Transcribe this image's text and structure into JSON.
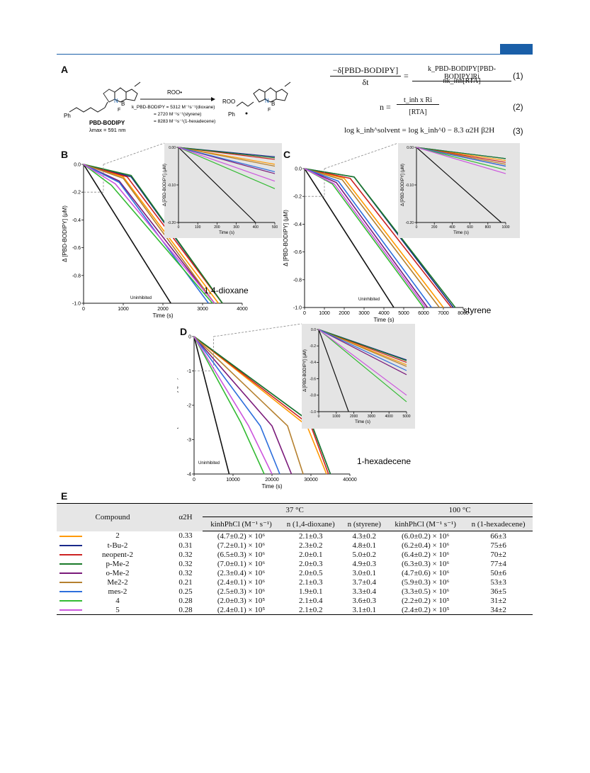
{
  "header": {
    "accent": "#1a5fa8"
  },
  "panels": {
    "A": "A",
    "B": "B",
    "C": "C",
    "D": "D",
    "E": "E"
  },
  "scheme": {
    "reagent": "ROO•",
    "rates": [
      "k_PBD-BODIPY = 5312 M⁻¹s⁻¹(dioxane)",
      "= 2720 M⁻¹s⁻¹(styrene)",
      "= 8283 M⁻¹s⁻¹(1-hexadecene)"
    ],
    "compound_name": "PBD-BODIPY",
    "lambda_max": "λmax = 591 nm",
    "ph_label": "Ph",
    "roo_label": "ROO",
    "atoms": {
      "N": "N",
      "B": "B",
      "F": "F"
    }
  },
  "equations": {
    "eq1_lhs_num": "−δ[PBD-BODIPY]",
    "eq1_lhs_den": "δt",
    "eq1_rhs_num": "k_PBD-BODIPY[PBD-BODIPY]Ri",
    "eq1_rhs_den": "nk_inh[RTA]",
    "eq1_num": "(1)",
    "eq2_lhs": "n =",
    "eq2_num_text": "t_inh x Ri",
    "eq2_den_text": "[RTA]",
    "eq2_num": "(2)",
    "eq3_text": "log k_inh^solvent = log k_inh^0 − 8.3 α2H β2H",
    "eq3_num": "(3)"
  },
  "chart_data": [
    {
      "id": "B",
      "type": "line",
      "solvent_label": "1,4-dioxane",
      "xlabel": "Time (s)",
      "ylabel": "Δ [PBD-BODIPY] (μM)",
      "xlim": [
        0,
        4000
      ],
      "ylim": [
        -1.0,
        0.0
      ],
      "xticks": [
        "0",
        "1000",
        "2000",
        "3000",
        "4000"
      ],
      "yticks": [
        "0.0",
        "-0.2",
        "-0.4",
        "-0.6",
        "-0.8",
        "-1.0"
      ],
      "uninhibited_label": "Uninhibited",
      "series": [
        {
          "color": "#111111",
          "x": [
            0,
            2200
          ],
          "y": [
            0,
            -1.0
          ]
        },
        {
          "color": "#ff9900",
          "x": [
            0,
            1000,
            3400
          ],
          "y": [
            0,
            -0.09,
            -1.0
          ]
        },
        {
          "color": "#1a2a8a",
          "x": [
            0,
            1200,
            3500
          ],
          "y": [
            0,
            -0.09,
            -1.0
          ]
        },
        {
          "color": "#cc2222",
          "x": [
            0,
            1100,
            3500
          ],
          "y": [
            0,
            -0.09,
            -1.0
          ]
        },
        {
          "color": "#1a7a2a",
          "x": [
            0,
            1200,
            3500
          ],
          "y": [
            0,
            -0.08,
            -1.0
          ]
        },
        {
          "color": "#7a1a7a",
          "x": [
            0,
            900,
            3300
          ],
          "y": [
            0,
            -0.12,
            -1.0
          ]
        },
        {
          "color": "#b5802f",
          "x": [
            0,
            1000,
            3300
          ],
          "y": [
            0,
            -0.1,
            -1.0
          ]
        },
        {
          "color": "#2e6fdc",
          "x": [
            0,
            900,
            3150
          ],
          "y": [
            0,
            -0.13,
            -1.0
          ]
        },
        {
          "color": "#33bb33",
          "x": [
            0,
            700,
            3250
          ],
          "y": [
            0,
            -0.15,
            -1.0
          ]
        },
        {
          "color": "#cc55dd",
          "x": [
            0,
            800,
            3300
          ],
          "y": [
            0,
            -0.14,
            -1.0
          ]
        }
      ],
      "inset": {
        "xlim": [
          0,
          500
        ],
        "ylim": [
          -0.2,
          0.0
        ],
        "xlabel": "Time (s)",
        "ylabel": "Δ [PBD-BODIPY] (μM)",
        "xticks": [
          "0",
          "100",
          "200",
          "300",
          "400",
          "500"
        ],
        "yticks": [
          "0.00",
          "-0.10",
          "-0.20"
        ],
        "series": [
          {
            "color": "#111111",
            "x": [
              0,
              400
            ],
            "y": [
              0,
              -0.2
            ]
          },
          {
            "color": "#ff9900",
            "x": [
              0,
              500
            ],
            "y": [
              0,
              -0.045
            ]
          },
          {
            "color": "#1a2a8a",
            "x": [
              0,
              500
            ],
            "y": [
              0,
              -0.025
            ]
          },
          {
            "color": "#cc2222",
            "x": [
              0,
              500
            ],
            "y": [
              0,
              -0.032
            ]
          },
          {
            "color": "#1a7a2a",
            "x": [
              0,
              500
            ],
            "y": [
              0,
              -0.028
            ]
          },
          {
            "color": "#7a1a7a",
            "x": [
              0,
              500
            ],
            "y": [
              0,
              -0.07
            ]
          },
          {
            "color": "#b5802f",
            "x": [
              0,
              500
            ],
            "y": [
              0,
              -0.05
            ]
          },
          {
            "color": "#2e6fdc",
            "x": [
              0,
              500
            ],
            "y": [
              0,
              -0.065
            ]
          },
          {
            "color": "#33bb33",
            "x": [
              0,
              500
            ],
            "y": [
              0,
              -0.11
            ]
          },
          {
            "color": "#cc55dd",
            "x": [
              0,
              500
            ],
            "y": [
              0,
              -0.09
            ]
          }
        ]
      }
    },
    {
      "id": "C",
      "type": "line",
      "solvent_label": "styrene",
      "xlabel": "Time (s)",
      "ylabel": "Δ [PBD-BODIPY] (μM)",
      "xlim": [
        0,
        8000
      ],
      "ylim": [
        -1.0,
        0.0
      ],
      "xticks": [
        "0",
        "1000",
        "2000",
        "3000",
        "4000",
        "5000",
        "6000",
        "7000",
        "8000"
      ],
      "yticks": [
        "0.0",
        "-0.2",
        "-0.4",
        "-0.6",
        "-0.8",
        "-1.0"
      ],
      "uninhibited_label": "Uninhibited",
      "series": [
        {
          "color": "#111111",
          "x": [
            0,
            4500
          ],
          "y": [
            0,
            -1.0
          ]
        },
        {
          "color": "#ff9900",
          "x": [
            0,
            2000,
            7000
          ],
          "y": [
            0,
            -0.07,
            -1.0
          ]
        },
        {
          "color": "#1a2a8a",
          "x": [
            0,
            2500,
            7500
          ],
          "y": [
            0,
            -0.06,
            -1.0
          ]
        },
        {
          "color": "#cc2222",
          "x": [
            0,
            2300,
            7400
          ],
          "y": [
            0,
            -0.07,
            -1.0
          ]
        },
        {
          "color": "#1a7a2a",
          "x": [
            0,
            2500,
            7600
          ],
          "y": [
            0,
            -0.06,
            -1.0
          ]
        },
        {
          "color": "#7a1a7a",
          "x": [
            0,
            1600,
            6200
          ],
          "y": [
            0,
            -0.1,
            -1.0
          ]
        },
        {
          "color": "#b5802f",
          "x": [
            0,
            1900,
            6800
          ],
          "y": [
            0,
            -0.08,
            -1.0
          ]
        },
        {
          "color": "#2e6fdc",
          "x": [
            0,
            1700,
            6400
          ],
          "y": [
            0,
            -0.09,
            -1.0
          ]
        },
        {
          "color": "#33bb33",
          "x": [
            0,
            1400,
            6000
          ],
          "y": [
            0,
            -0.11,
            -1.0
          ]
        },
        {
          "color": "#cc55dd",
          "x": [
            0,
            1500,
            6100
          ],
          "y": [
            0,
            -0.11,
            -1.0
          ]
        }
      ],
      "inset": {
        "xlim": [
          0,
          1000
        ],
        "ylim": [
          -0.2,
          0.0
        ],
        "xlabel": "Time (s)",
        "ylabel": "Δ [PBD-BODIPY] (μM)",
        "xticks": [
          "0",
          "200",
          "400",
          "600",
          "800",
          "1000"
        ],
        "yticks": [
          "0.00",
          "-0.10",
          "-0.20"
        ],
        "series": [
          {
            "color": "#111111",
            "x": [
              0,
              950
            ],
            "y": [
              0,
              -0.2
            ]
          },
          {
            "color": "#ff9900",
            "x": [
              0,
              1000
            ],
            "y": [
              0,
              -0.035
            ]
          },
          {
            "color": "#1a2a8a",
            "x": [
              0,
              1000
            ],
            "y": [
              0,
              -0.03
            ]
          },
          {
            "color": "#cc2222",
            "x": [
              0,
              1000
            ],
            "y": [
              0,
              -0.04
            ]
          },
          {
            "color": "#1a7a2a",
            "x": [
              0,
              1000
            ],
            "y": [
              0,
              -0.03
            ]
          },
          {
            "color": "#7a1a7a",
            "x": [
              0,
              1000
            ],
            "y": [
              0,
              -0.05
            ]
          },
          {
            "color": "#b5802f",
            "x": [
              0,
              1000
            ],
            "y": [
              0,
              -0.045
            ]
          },
          {
            "color": "#2e6fdc",
            "x": [
              0,
              1000
            ],
            "y": [
              0,
              -0.05
            ]
          },
          {
            "color": "#33bb33",
            "x": [
              0,
              1000
            ],
            "y": [
              0,
              -0.06
            ]
          },
          {
            "color": "#cc55dd",
            "x": [
              0,
              1000
            ],
            "y": [
              0,
              -0.07
            ]
          }
        ]
      }
    },
    {
      "id": "D",
      "type": "line",
      "solvent_label": "1-hexadecene",
      "xlabel": "Time (s)",
      "ylabel": "Δ[PBD-BODIPY] (μM)",
      "xlim": [
        0,
        40000
      ],
      "ylim": [
        -4,
        0
      ],
      "xticks": [
        "0",
        "10000",
        "20000",
        "30000",
        "40000"
      ],
      "yticks": [
        "0",
        "-1",
        "-2",
        "-3",
        "-4"
      ],
      "uninhibited_label": "Uninhibited",
      "series": [
        {
          "color": "#111111",
          "x": [
            0,
            9000
          ],
          "y": [
            0,
            -4
          ]
        },
        {
          "color": "#ff9900",
          "x": [
            0,
            29000,
            34000
          ],
          "y": [
            0,
            -2.6,
            -4
          ]
        },
        {
          "color": "#1a2a8a",
          "x": [
            0,
            30000,
            35000
          ],
          "y": [
            0,
            -2.5,
            -4
          ]
        },
        {
          "color": "#cc2222",
          "x": [
            0,
            30000,
            34500
          ],
          "y": [
            0,
            -2.6,
            -4
          ]
        },
        {
          "color": "#1a7a2a",
          "x": [
            0,
            30000,
            35000
          ],
          "y": [
            0,
            -2.5,
            -4
          ]
        },
        {
          "color": "#7a1a7a",
          "x": [
            0,
            20000,
            25000
          ],
          "y": [
            0,
            -2.6,
            -4
          ]
        },
        {
          "color": "#b5802f",
          "x": [
            0,
            24000,
            28000
          ],
          "y": [
            0,
            -2.6,
            -4
          ]
        },
        {
          "color": "#2e6fdc",
          "x": [
            0,
            17000,
            22000
          ],
          "y": [
            0,
            -2.6,
            -4
          ]
        },
        {
          "color": "#33bb33",
          "x": [
            0,
            12000,
            18000
          ],
          "y": [
            0,
            -2.5,
            -4
          ]
        },
        {
          "color": "#cc55dd",
          "x": [
            0,
            14000,
            20000
          ],
          "y": [
            0,
            -2.6,
            -4
          ]
        }
      ],
      "inset": {
        "xlim": [
          0,
          5000
        ],
        "ylim": [
          -1.0,
          0.0
        ],
        "xlabel": "Time (s)",
        "ylabel": "Δ [PBD-BODIPY] (μM)",
        "xticks": [
          "0",
          "1000",
          "2000",
          "3000",
          "4000",
          "5000"
        ],
        "yticks": [
          "0.0",
          "-0.2",
          "-0.4",
          "-0.6",
          "-0.8",
          "-1.0"
        ],
        "series": [
          {
            "color": "#111111",
            "x": [
              0,
              1700
            ],
            "y": [
              0,
              -1.0
            ]
          },
          {
            "color": "#ff9900",
            "x": [
              0,
              5000
            ],
            "y": [
              0,
              -0.43
            ]
          },
          {
            "color": "#1a2a8a",
            "x": [
              0,
              5000
            ],
            "y": [
              0,
              -0.37
            ]
          },
          {
            "color": "#cc2222",
            "x": [
              0,
              5000
            ],
            "y": [
              0,
              -0.4
            ]
          },
          {
            "color": "#1a7a2a",
            "x": [
              0,
              5000
            ],
            "y": [
              0,
              -0.38
            ]
          },
          {
            "color": "#7a1a7a",
            "x": [
              0,
              5000
            ],
            "y": [
              0,
              -0.55
            ]
          },
          {
            "color": "#b5802f",
            "x": [
              0,
              5000
            ],
            "y": [
              0,
              -0.45
            ]
          },
          {
            "color": "#2e6fdc",
            "x": [
              0,
              5000
            ],
            "y": [
              0,
              -0.5
            ]
          },
          {
            "color": "#33bb33",
            "x": [
              0,
              5000
            ],
            "y": [
              0,
              -0.88
            ]
          },
          {
            "color": "#cc55dd",
            "x": [
              0,
              5000
            ],
            "y": [
              0,
              -0.8
            ]
          }
        ]
      }
    }
  ],
  "table": {
    "headers": {
      "compound": "Compound",
      "alpha": "α2H",
      "temp37": "37 °C",
      "temp100": "100 °C",
      "k37": "kinhPhCl (M⁻¹ s⁻¹)",
      "n_dioxane": "n (1,4-dioxane)",
      "n_styrene": "n (styrene)",
      "k100": "kinhPhCl (M⁻¹ s⁻¹)",
      "n_hexadecene": "n (1-hexadecene)"
    },
    "rows": [
      {
        "color": "#ff9900",
        "compound": "2",
        "alpha": "0.33",
        "k37": "(4.7±0.2) × 10⁶",
        "n_diox": "2.1±0.3",
        "n_sty": "4.3±0.2",
        "k100": "(6.0±0.2) × 10⁶",
        "n_hex": "66±3"
      },
      {
        "color": "#1a2a8a",
        "compound": "t-Bu-2",
        "alpha": "0.31",
        "k37": "(7.2±0.1) × 10⁶",
        "n_diox": "2.3±0.2",
        "n_sty": "4.8±0.1",
        "k100": "(6.2±0.4) × 10⁶",
        "n_hex": "75±6"
      },
      {
        "color": "#cc2222",
        "compound": "neopent-2",
        "alpha": "0.32",
        "k37": "(6.5±0.3) × 10⁶",
        "n_diox": "2.0±0.1",
        "n_sty": "5.0±0.2",
        "k100": "(6.4±0.2) × 10⁶",
        "n_hex": "70±2"
      },
      {
        "color": "#1a7a2a",
        "compound": "p-Me-2",
        "alpha": "0.32",
        "k37": "(7.0±0.1) × 10⁶",
        "n_diox": "2.0±0.3",
        "n_sty": "4.9±0.3",
        "k100": "(6.3±0.3) × 10⁶",
        "n_hex": "77±4"
      },
      {
        "color": "#7a1a7a",
        "compound": "o-Me-2",
        "alpha": "0.32",
        "k37": "(2.3±0.4) × 10⁶",
        "n_diox": "2.0±0.5",
        "n_sty": "3.0±0.1",
        "k100": "(4.7±0.6) × 10⁶",
        "n_hex": "50±6"
      },
      {
        "color": "#b5802f",
        "compound": "Me2-2",
        "alpha": "0.21",
        "k37": "(2.4±0.1) × 10⁶",
        "n_diox": "2.1±0.3",
        "n_sty": "3.7±0.4",
        "k100": "(5.9±0.3) × 10⁶",
        "n_hex": "53±3"
      },
      {
        "color": "#2e6fdc",
        "compound": "mes-2",
        "alpha": "0.25",
        "k37": "(2.5±0.3) × 10⁶",
        "n_diox": "1.9±0.1",
        "n_sty": "3.3±0.4",
        "k100": "(3.3±0.5) × 10⁶",
        "n_hex": "36±5"
      },
      {
        "color": "#33bb33",
        "compound": "4",
        "alpha": "0.28",
        "k37": "(2.0±0.3) × 10⁵",
        "n_diox": "2.1±0.4",
        "n_sty": "3.6±0.3",
        "k100": "(2.2±0.2) × 10⁵",
        "n_hex": "31±2"
      },
      {
        "color": "#cc55dd",
        "compound": "5",
        "alpha": "0.28",
        "k37": "(2.4±0.1) × 10⁵",
        "n_diox": "2.1±0.2",
        "n_sty": "3.1±0.1",
        "k100": "(2.4±0.2) × 10⁵",
        "n_hex": "34±2"
      }
    ]
  }
}
